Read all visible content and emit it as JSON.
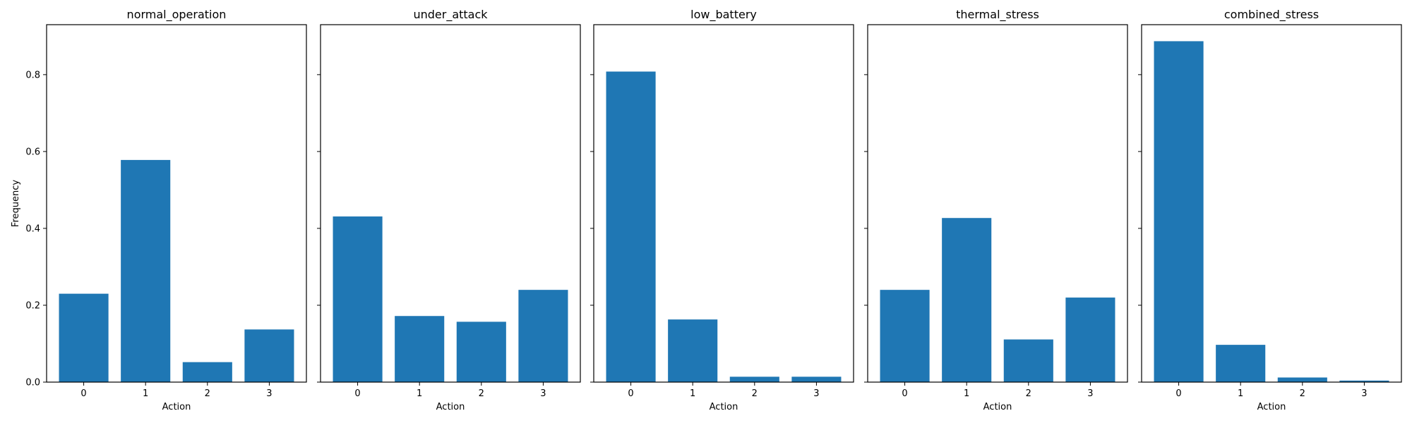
{
  "chart_data": [
    {
      "type": "bar",
      "title": "normal_operation",
      "xlabel": "Action",
      "ylabel": "Frequency",
      "categories": [
        "0",
        "1",
        "2",
        "3"
      ],
      "values": [
        0.23,
        0.578,
        0.052,
        0.137
      ],
      "ylim": [
        0,
        0.93
      ],
      "grid": false
    },
    {
      "type": "bar",
      "title": "under_attack",
      "xlabel": "Action",
      "ylabel": "",
      "categories": [
        "0",
        "1",
        "2",
        "3"
      ],
      "values": [
        0.431,
        0.172,
        0.157,
        0.24
      ],
      "ylim": [
        0,
        0.93
      ],
      "grid": false
    },
    {
      "type": "bar",
      "title": "low_battery",
      "xlabel": "Action",
      "ylabel": "",
      "categories": [
        "0",
        "1",
        "2",
        "3"
      ],
      "values": [
        0.808,
        0.163,
        0.014,
        0.014
      ],
      "ylim": [
        0,
        0.93
      ],
      "grid": false
    },
    {
      "type": "bar",
      "title": "thermal_stress",
      "xlabel": "Action",
      "ylabel": "",
      "categories": [
        "0",
        "1",
        "2",
        "3"
      ],
      "values": [
        0.24,
        0.427,
        0.111,
        0.22
      ],
      "ylim": [
        0,
        0.93
      ],
      "grid": false
    },
    {
      "type": "bar",
      "title": "combined_stress",
      "xlabel": "Action",
      "ylabel": "",
      "categories": [
        "0",
        "1",
        "2",
        "3"
      ],
      "values": [
        0.887,
        0.097,
        0.012,
        0.004
      ],
      "ylim": [
        0,
        0.93
      ],
      "grid": false
    }
  ],
  "y_ticks": [
    "0.0",
    "0.2",
    "0.4",
    "0.6",
    "0.8"
  ],
  "colors": {
    "bar": "#1f77b4",
    "axes": "#000000",
    "background": "#ffffff"
  }
}
